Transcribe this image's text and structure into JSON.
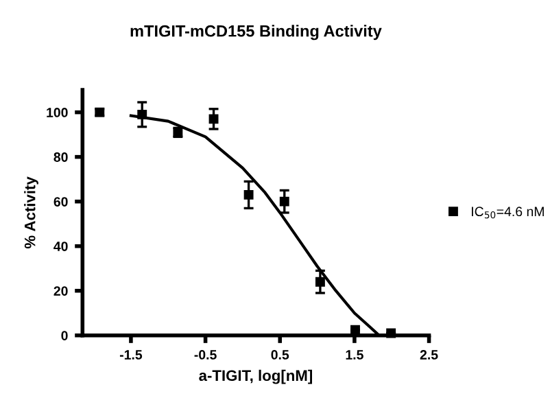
{
  "chart_data": {
    "type": "scatter",
    "title": "mTIGIT-mCD155 Binding Activity",
    "xlabel": "a-TIGIT, log[nM]",
    "ylabel": "% Activity",
    "xlim": [
      -2.15,
      2.5
    ],
    "xticks": [
      -1.5,
      -0.5,
      0.5,
      1.5,
      2.5
    ],
    "ylim": [
      0,
      110
    ],
    "yticks": [
      0,
      20,
      40,
      60,
      80,
      100
    ],
    "grid": false,
    "legend": "right",
    "series": [
      {
        "name": "IC$_{50}$=4.6 nM",
        "color": "#000000",
        "marker": "square",
        "x": [
          -1.92,
          -1.35,
          -0.87,
          -0.39,
          0.08,
          0.56,
          1.04,
          1.51,
          1.99
        ],
        "values": [
          100,
          99,
          91,
          97,
          63,
          60,
          24,
          2.5,
          1
        ],
        "errors": [
          1.5,
          5.5,
          2,
          4.5,
          6,
          5,
          5,
          null,
          null
        ]
      },
      {
        "type": "line",
        "color": "#000000",
        "line_style": "solid",
        "x": [
          -1.5,
          -1.0,
          -0.5,
          0,
          0.3,
          0.5,
          0.75,
          1.0,
          1.25,
          1.5,
          1.7,
          1.83
        ],
        "values": [
          98.5,
          96,
          89,
          75,
          64,
          55,
          43,
          31,
          20,
          10,
          4,
          0
        ]
      }
    ]
  }
}
